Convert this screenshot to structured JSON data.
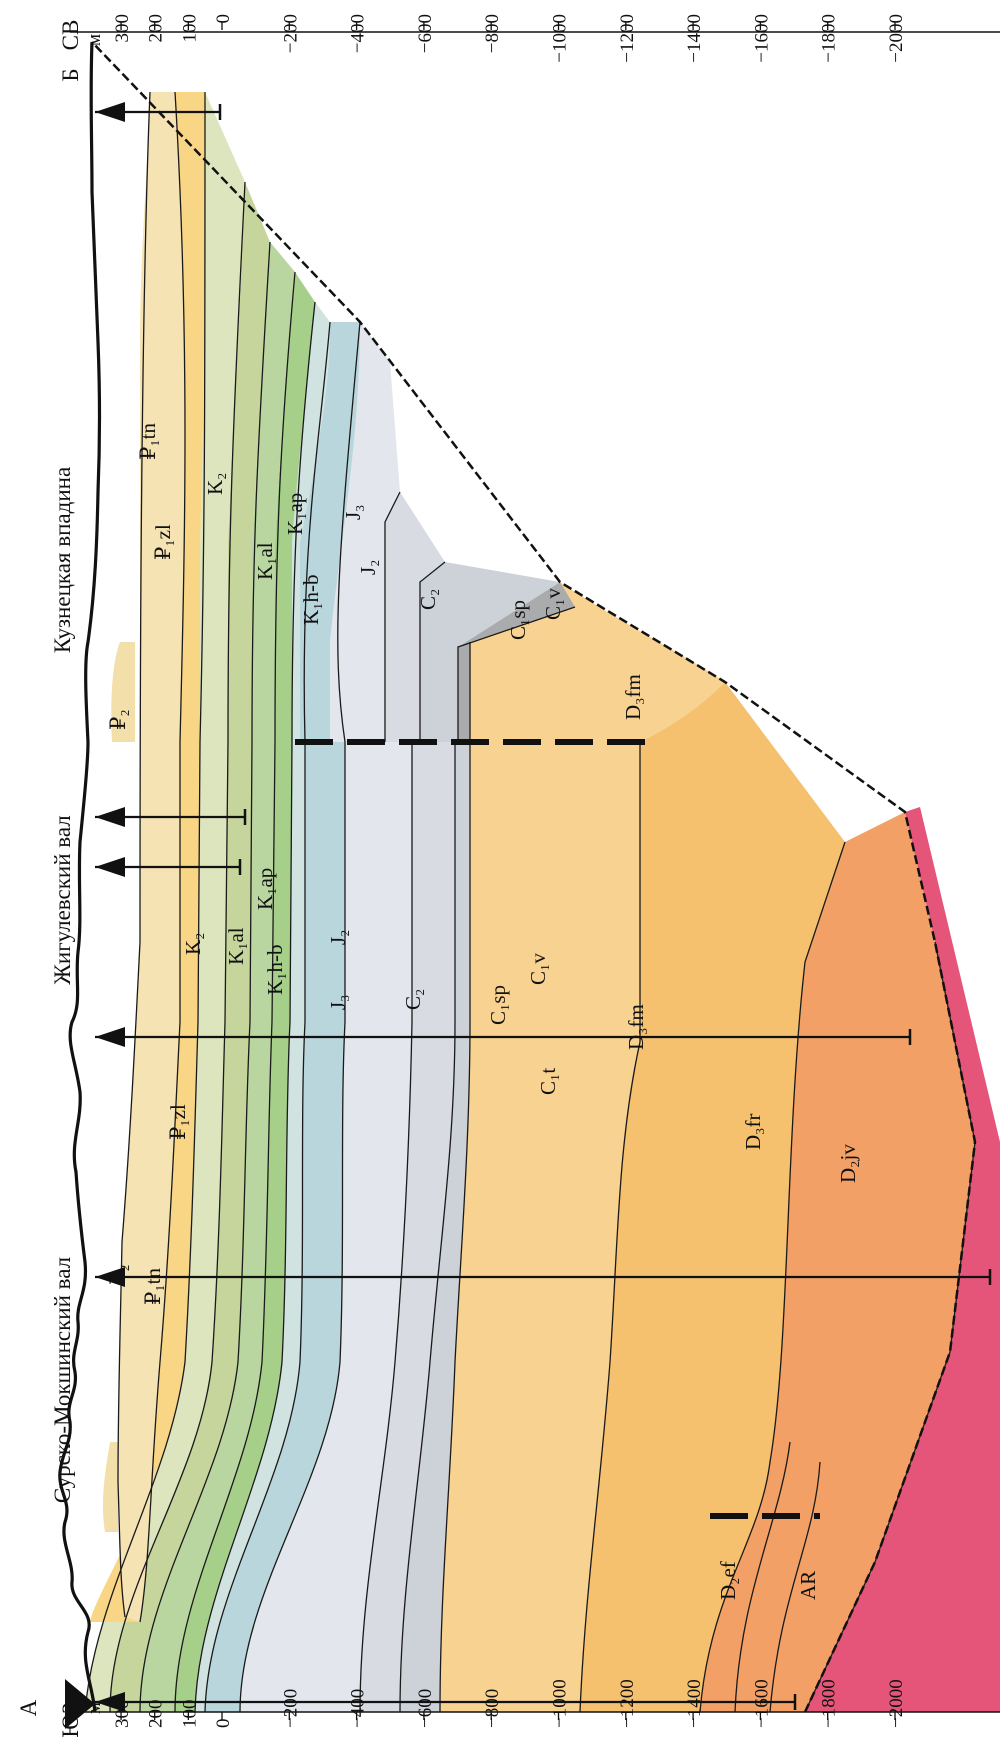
{
  "directions": {
    "sw": "ЮЗ",
    "ne": "СВ"
  },
  "endpoints": {
    "start": "А",
    "end": "Б"
  },
  "unit": "м",
  "structures": [
    {
      "name": "Сурско-Мокшинский вал"
    },
    {
      "name": "Жигулевский вал"
    },
    {
      "name": "Кузнецкая впадина"
    }
  ],
  "depth_ticks": [
    "300",
    "200",
    "100",
    "0",
    "−200",
    "−400",
    "−600",
    "−800",
    "−1000",
    "−1200",
    "−1400",
    "−1600",
    "−1800",
    "−2000"
  ],
  "depth_values": [
    300,
    200,
    100,
    0,
    -200,
    -400,
    -600,
    -800,
    -1000,
    -1200,
    -1400,
    -1600,
    -1800,
    -2000
  ],
  "units_colors": {
    "P1tn": "#f5e3b4",
    "P2": "#f3dfaa",
    "P1zl": "#f9d685",
    "K2": "#dde5bf",
    "K1al": "#c6d59c",
    "K1ap": "#b9d6a1",
    "K1hb": "#a6d08a",
    "J3": "#d1e3e1",
    "J2": "#b9d6dc",
    "C2": "#e3e6ec",
    "C1sp": "#d8dce2",
    "C1v": "#cdd1d8",
    "C1t": "#a9abad",
    "D3fm": "#f8d290",
    "D3fr": "#f5c16e",
    "D2jv": "#f2a065",
    "D2ef": "#f0b281",
    "AR": "#e55479"
  },
  "labels": {
    "P2_a": "₽₂",
    "P1tn_a": "₽₁tn",
    "P1zl_a": "₽₁zl",
    "K2_a": "K₂",
    "K1al_a": "K₁al",
    "K1ap_a": "K₁ap",
    "K1hb_a": "K₁h-b",
    "J3_a": "J₃",
    "J2_a": "J₂",
    "C2_a": "C₂",
    "C1sp_a": "C₁sp",
    "C1v_a": "C₁v",
    "C1t_a": "C₁t",
    "D3fm_a": "D₃fm",
    "D3fr_a": "D₃fr",
    "D2jv_a": "D₂jv",
    "D2ef_a": "D₂ef",
    "AR_a": "AR",
    "P2_b": "₽₂",
    "P1zl_b": "₽₁zl",
    "P1tn_b": "₽₁tn",
    "K2_b": "K₂",
    "K1al_b": "K₁al",
    "K1ap_b": "K₁ap",
    "K1hb_b": "K₁h-b",
    "J2_b": "J₂",
    "J3_b": "J₃",
    "C2_b": "C₂",
    "C1sp_b": "C₁sp",
    "C1v_b": "C₁v",
    "D3fm_b": "D₃fm"
  }
}
